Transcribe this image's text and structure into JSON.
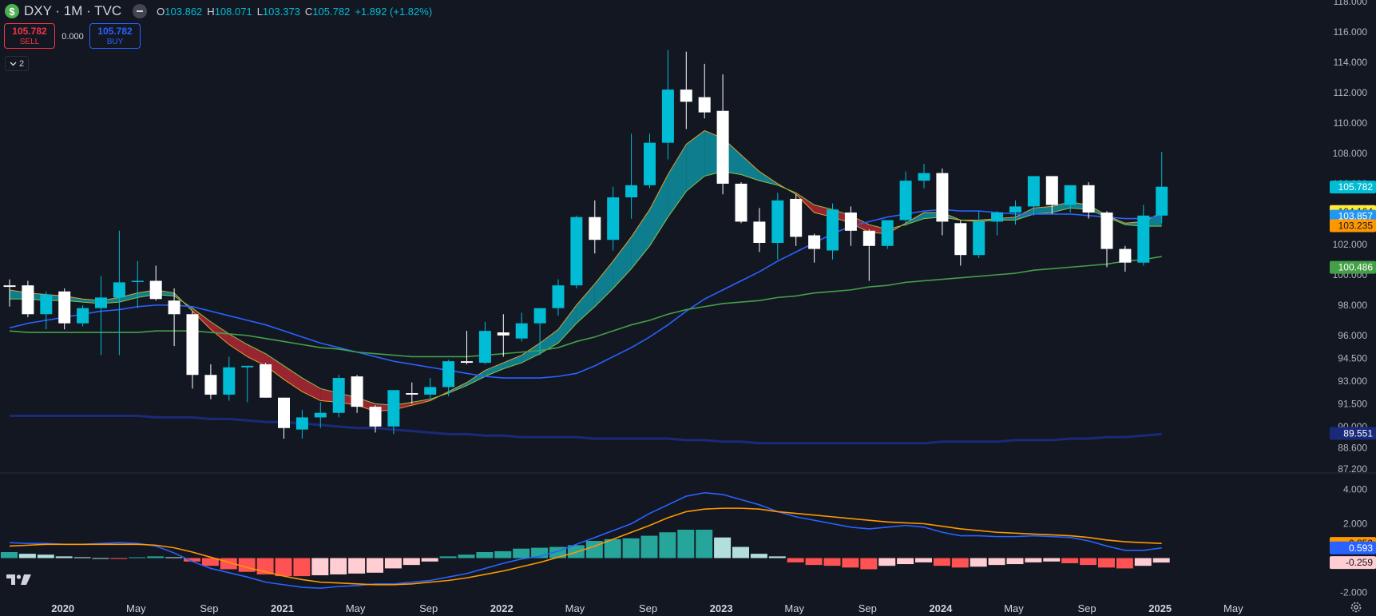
{
  "header": {
    "symbol_icon": "$",
    "title": "DXY · 1M · TVC",
    "ohlc": {
      "o_label": "O",
      "o": "103.862",
      "h_label": "H",
      "h": "108.071",
      "l_label": "L",
      "l": "103.373",
      "c_label": "C",
      "c": "105.782",
      "change": "+1.892 (+1.82%)"
    }
  },
  "trade": {
    "sell_price": "105.782",
    "sell_label": "SELL",
    "spread": "0.000",
    "buy_price": "105.782",
    "buy_label": "BUY"
  },
  "indicators_toggle": {
    "count": "2"
  },
  "icons": {
    "logo": "tradingview-logo-icon",
    "settings": "gear-icon",
    "collapse": "collapse-icon",
    "chevron": "chevron-down-icon"
  },
  "colors": {
    "background": "#131722",
    "up_candle": "#00bcd4",
    "down_candle": "#ffffff",
    "ribbon_bull": "#0e8fa0",
    "ribbon_bear": "#b22833",
    "ma_blue": "#2962ff",
    "ma_green": "#43a047",
    "ma_navy": "#1a2a7a",
    "macd_line": "#2962ff",
    "signal_line": "#ff9800",
    "hist_pos_strong": "#26a69a",
    "hist_pos_weak": "#b2dfdb",
    "hist_neg_strong": "#ff5252",
    "hist_neg_weak": "#ffcdd2"
  },
  "chart_data": [
    {
      "type": "candlestick",
      "symbol": "DXY",
      "interval": "1M",
      "y_scale_ticks": [
        "118.000",
        "116.000",
        "114.000",
        "112.000",
        "110.000",
        "108.000",
        "106.000",
        "104.000",
        "102.000",
        "100.000",
        "98.000",
        "96.000",
        "94.500",
        "93.000",
        "91.500",
        "90.000",
        "88.600",
        "87.200"
      ],
      "ylim": [
        87.2,
        118.0
      ],
      "x_tick_labels": [
        "Sep",
        "2020",
        "May",
        "Sep",
        "2021",
        "May",
        "Sep",
        "2022",
        "May",
        "Sep",
        "2023",
        "May",
        "Sep",
        "2024",
        "May",
        "Sep",
        "2025",
        "May"
      ],
      "candles": [
        {
          "o": 99.3,
          "h": 99.7,
          "l": 97.9,
          "c": 99.2
        },
        {
          "o": 99.3,
          "h": 99.6,
          "l": 97.2,
          "c": 97.4
        },
        {
          "o": 97.4,
          "h": 98.9,
          "l": 96.4,
          "c": 98.7
        },
        {
          "o": 98.9,
          "h": 99.1,
          "l": 96.4,
          "c": 96.8
        },
        {
          "o": 96.8,
          "h": 98.0,
          "l": 96.6,
          "c": 97.8
        },
        {
          "o": 97.8,
          "h": 99.9,
          "l": 94.7,
          "c": 98.5
        },
        {
          "o": 98.5,
          "h": 102.9,
          "l": 94.7,
          "c": 99.5
        },
        {
          "o": 99.6,
          "h": 100.9,
          "l": 97.8,
          "c": 99.6
        },
        {
          "o": 99.6,
          "h": 100.6,
          "l": 98.3,
          "c": 98.4
        },
        {
          "o": 98.3,
          "h": 99.1,
          "l": 95.3,
          "c": 97.4
        },
        {
          "o": 97.4,
          "h": 97.6,
          "l": 92.5,
          "c": 93.4
        },
        {
          "o": 93.4,
          "h": 94.1,
          "l": 91.8,
          "c": 92.1
        },
        {
          "o": 92.1,
          "h": 94.6,
          "l": 91.7,
          "c": 93.9
        },
        {
          "o": 93.9,
          "h": 94.0,
          "l": 91.6,
          "c": 94.0
        },
        {
          "o": 94.1,
          "h": 94.2,
          "l": 91.9,
          "c": 91.9
        },
        {
          "o": 91.9,
          "h": 91.9,
          "l": 89.2,
          "c": 89.9
        },
        {
          "o": 89.8,
          "h": 91.1,
          "l": 89.2,
          "c": 90.6
        },
        {
          "o": 90.6,
          "h": 91.6,
          "l": 89.9,
          "c": 90.9
        },
        {
          "o": 90.9,
          "h": 93.4,
          "l": 90.6,
          "c": 93.2
        },
        {
          "o": 93.3,
          "h": 93.4,
          "l": 90.9,
          "c": 91.3
        },
        {
          "o": 91.3,
          "h": 91.4,
          "l": 89.6,
          "c": 90.0
        },
        {
          "o": 90.0,
          "h": 92.4,
          "l": 89.5,
          "c": 92.4
        },
        {
          "o": 92.2,
          "h": 92.9,
          "l": 91.5,
          "c": 92.1
        },
        {
          "o": 92.1,
          "h": 93.2,
          "l": 91.8,
          "c": 92.6
        },
        {
          "o": 92.6,
          "h": 94.4,
          "l": 92.0,
          "c": 94.3
        },
        {
          "o": 94.3,
          "h": 96.3,
          "l": 94.1,
          "c": 94.2
        },
        {
          "o": 94.2,
          "h": 96.9,
          "l": 94.1,
          "c": 96.3
        },
        {
          "o": 96.2,
          "h": 97.4,
          "l": 94.6,
          "c": 96.0
        },
        {
          "o": 95.8,
          "h": 97.5,
          "l": 95.6,
          "c": 96.8
        },
        {
          "o": 96.8,
          "h": 97.7,
          "l": 94.7,
          "c": 97.8
        },
        {
          "o": 97.8,
          "h": 99.7,
          "l": 97.3,
          "c": 99.3
        },
        {
          "o": 99.3,
          "h": 103.9,
          "l": 99.1,
          "c": 103.8
        },
        {
          "o": 103.8,
          "h": 104.9,
          "l": 101.4,
          "c": 102.3
        },
        {
          "o": 102.3,
          "h": 105.8,
          "l": 101.6,
          "c": 105.1
        },
        {
          "o": 105.1,
          "h": 109.3,
          "l": 103.7,
          "c": 105.9
        },
        {
          "o": 105.9,
          "h": 109.3,
          "l": 105.7,
          "c": 108.7
        },
        {
          "o": 108.7,
          "h": 114.8,
          "l": 107.6,
          "c": 112.2
        },
        {
          "o": 112.2,
          "h": 114.7,
          "l": 109.6,
          "c": 111.4
        },
        {
          "o": 111.7,
          "h": 113.9,
          "l": 110.3,
          "c": 110.7
        },
        {
          "o": 110.8,
          "h": 113.2,
          "l": 105.3,
          "c": 106.0
        },
        {
          "o": 106.0,
          "h": 106.1,
          "l": 103.4,
          "c": 103.5
        },
        {
          "o": 103.5,
          "h": 104.4,
          "l": 101.5,
          "c": 102.1
        },
        {
          "o": 102.1,
          "h": 105.4,
          "l": 101.0,
          "c": 104.9
        },
        {
          "o": 105.0,
          "h": 105.3,
          "l": 101.9,
          "c": 102.5
        },
        {
          "o": 102.6,
          "h": 102.7,
          "l": 100.8,
          "c": 101.7
        },
        {
          "o": 101.6,
          "h": 104.7,
          "l": 101.0,
          "c": 104.3
        },
        {
          "o": 104.1,
          "h": 104.5,
          "l": 101.9,
          "c": 102.9
        },
        {
          "o": 102.9,
          "h": 103.0,
          "l": 99.6,
          "c": 101.9
        },
        {
          "o": 101.9,
          "h": 103.6,
          "l": 101.7,
          "c": 103.6
        },
        {
          "o": 103.6,
          "h": 106.8,
          "l": 103.2,
          "c": 106.2
        },
        {
          "o": 106.2,
          "h": 107.3,
          "l": 105.7,
          "c": 106.7
        },
        {
          "o": 106.7,
          "h": 107.0,
          "l": 102.6,
          "c": 103.5
        },
        {
          "o": 103.4,
          "h": 103.6,
          "l": 100.6,
          "c": 101.3
        },
        {
          "o": 101.3,
          "h": 104.2,
          "l": 101.1,
          "c": 103.5
        },
        {
          "o": 103.5,
          "h": 104.2,
          "l": 102.6,
          "c": 104.1
        },
        {
          "o": 104.1,
          "h": 104.9,
          "l": 103.3,
          "c": 104.5
        },
        {
          "o": 104.5,
          "h": 106.5,
          "l": 103.9,
          "c": 106.5
        },
        {
          "o": 106.5,
          "h": 106.5,
          "l": 104.0,
          "c": 104.6
        },
        {
          "o": 104.6,
          "h": 105.7,
          "l": 104.1,
          "c": 105.9
        },
        {
          "o": 105.9,
          "h": 106.1,
          "l": 103.7,
          "c": 104.1
        },
        {
          "o": 104.1,
          "h": 104.2,
          "l": 100.5,
          "c": 101.7
        },
        {
          "o": 101.7,
          "h": 101.9,
          "l": 100.2,
          "c": 100.8
        },
        {
          "o": 100.8,
          "h": 104.6,
          "l": 100.6,
          "c": 103.9
        },
        {
          "o": 103.9,
          "h": 108.1,
          "l": 103.4,
          "c": 105.8
        }
      ],
      "overlays": [
        {
          "name": "ema_fast",
          "color": "#e0a030",
          "values": [
            99.0,
            98.8,
            98.7,
            98.6,
            98.4,
            98.3,
            98.5,
            98.8,
            99.0,
            98.8,
            97.6,
            96.4,
            95.4,
            94.6,
            94.0,
            93.1,
            92.3,
            91.7,
            91.6,
            91.4,
            91.0,
            91.1,
            91.4,
            91.7,
            92.3,
            92.9,
            93.7,
            94.2,
            94.7,
            95.5,
            96.4,
            98.0,
            99.4,
            100.9,
            102.5,
            104.3,
            106.6,
            108.6,
            109.5,
            109.0,
            107.9,
            106.8,
            106.0,
            105.3,
            104.1,
            103.8,
            103.4,
            102.8,
            102.7,
            103.4,
            104.1,
            104.1,
            103.6,
            103.6,
            103.7,
            103.8,
            104.4,
            104.5,
            104.8,
            104.6,
            103.9,
            103.4,
            103.5,
            104.1
          ]
        },
        {
          "name": "ema_slow",
          "color": "#8bc34a",
          "values": [
            98.4,
            98.4,
            98.3,
            98.3,
            98.2,
            98.1,
            98.2,
            98.5,
            98.7,
            98.6,
            97.8,
            96.9,
            96.1,
            95.4,
            94.8,
            94.0,
            93.2,
            92.5,
            92.2,
            91.9,
            91.5,
            91.4,
            91.6,
            91.8,
            92.2,
            92.7,
            93.3,
            93.8,
            94.2,
            94.8,
            95.5,
            96.8,
            97.9,
            99.1,
            100.4,
            101.9,
            103.8,
            105.5,
            106.5,
            106.8,
            106.6,
            106.2,
            105.9,
            105.4,
            104.6,
            104.3,
            103.9,
            103.3,
            103.0,
            103.3,
            103.7,
            103.8,
            103.6,
            103.5,
            103.6,
            103.6,
            104.0,
            104.1,
            104.4,
            104.3,
            103.8,
            103.3,
            103.2,
            103.2
          ]
        },
        {
          "name": "ma_blue",
          "color": "#2962ff",
          "values": [
            96.5,
            96.8,
            97.0,
            97.2,
            97.4,
            97.6,
            97.7,
            97.9,
            98.0,
            98.0,
            97.9,
            97.6,
            97.3,
            97.0,
            96.7,
            96.3,
            95.9,
            95.5,
            95.2,
            94.9,
            94.6,
            94.3,
            94.1,
            93.9,
            93.7,
            93.5,
            93.3,
            93.2,
            93.2,
            93.2,
            93.3,
            93.5,
            94.0,
            94.6,
            95.2,
            95.9,
            96.7,
            97.6,
            98.4,
            99.0,
            99.6,
            100.2,
            100.9,
            101.5,
            102.1,
            102.7,
            103.2,
            103.5,
            103.8,
            104.0,
            104.2,
            104.3,
            104.2,
            104.2,
            104.1,
            104.0,
            104.0,
            104.0,
            104.0,
            103.9,
            103.8,
            103.7,
            103.7,
            103.9
          ]
        },
        {
          "name": "ma_green",
          "color": "#43a047",
          "values": [
            96.3,
            96.2,
            96.2,
            96.2,
            96.2,
            96.2,
            96.2,
            96.2,
            96.3,
            96.3,
            96.3,
            96.2,
            96.1,
            96.0,
            95.8,
            95.6,
            95.4,
            95.2,
            95.1,
            94.9,
            94.8,
            94.7,
            94.6,
            94.6,
            94.6,
            94.6,
            94.7,
            94.8,
            94.9,
            95.0,
            95.2,
            95.6,
            95.9,
            96.3,
            96.7,
            97.0,
            97.4,
            97.7,
            97.9,
            98.1,
            98.2,
            98.3,
            98.5,
            98.6,
            98.8,
            98.9,
            99.0,
            99.2,
            99.3,
            99.5,
            99.6,
            99.7,
            99.8,
            99.9,
            100.0,
            100.1,
            100.3,
            100.4,
            100.5,
            100.6,
            100.7,
            100.9,
            101.0,
            101.2
          ]
        },
        {
          "name": "ma_navy",
          "color": "#1a2a7a",
          "values": [
            90.7,
            90.7,
            90.7,
            90.7,
            90.7,
            90.7,
            90.7,
            90.7,
            90.6,
            90.6,
            90.6,
            90.5,
            90.5,
            90.4,
            90.3,
            90.3,
            90.2,
            90.1,
            90.0,
            89.9,
            89.9,
            89.8,
            89.7,
            89.6,
            89.5,
            89.5,
            89.4,
            89.4,
            89.3,
            89.3,
            89.3,
            89.3,
            89.2,
            89.2,
            89.2,
            89.2,
            89.2,
            89.1,
            89.1,
            89.0,
            89.0,
            88.9,
            88.9,
            88.9,
            88.9,
            88.9,
            88.9,
            88.9,
            88.9,
            88.9,
            88.9,
            89.0,
            89.0,
            89.0,
            89.0,
            89.1,
            89.1,
            89.1,
            89.2,
            89.2,
            89.3,
            89.3,
            89.4,
            89.5
          ]
        }
      ],
      "price_labels": [
        {
          "value": "105.782",
          "bg": "#00bcd4",
          "fg": "#ffffff",
          "y": 105.782
        },
        {
          "value": "104.164",
          "bg": "#ffeb3b",
          "fg": "#131722",
          "y": 104.164
        },
        {
          "value": "103.857",
          "bg": "#2196f3",
          "fg": "#ffffff",
          "y": 103.857
        },
        {
          "value": "103.235",
          "bg": "#ff9800",
          "fg": "#131722",
          "y": 103.235
        },
        {
          "value": "100.486",
          "bg": "#43a047",
          "fg": "#ffffff",
          "y": 100.486
        },
        {
          "value": "89.551",
          "bg": "#1a2a7a",
          "fg": "#ffffff",
          "y": 89.551
        }
      ]
    },
    {
      "type": "macd",
      "y_scale_ticks": [
        "4.000",
        "2.000",
        "-2.000"
      ],
      "ylim": [
        -2.3,
        4.3
      ],
      "histogram": [
        0.35,
        0.25,
        0.2,
        0.1,
        0.05,
        0.0,
        -0.05,
        0.05,
        0.1,
        0.05,
        -0.2,
        -0.45,
        -0.65,
        -0.8,
        -0.95,
        -1.05,
        -1.05,
        -1.0,
        -0.95,
        -0.9,
        -0.85,
        -0.6,
        -0.4,
        -0.2,
        0.1,
        0.2,
        0.35,
        0.4,
        0.55,
        0.6,
        0.65,
        0.75,
        1.0,
        1.1,
        1.15,
        1.3,
        1.5,
        1.65,
        1.65,
        1.2,
        0.65,
        0.25,
        0.1,
        -0.25,
        -0.4,
        -0.45,
        -0.55,
        -0.65,
        -0.45,
        -0.35,
        -0.25,
        -0.45,
        -0.55,
        -0.5,
        -0.4,
        -0.35,
        -0.25,
        -0.2,
        -0.3,
        -0.4,
        -0.55,
        -0.6,
        -0.45,
        -0.26
      ],
      "macd_line": [
        0.9,
        0.85,
        0.85,
        0.8,
        0.8,
        0.85,
        0.9,
        0.85,
        0.7,
        0.3,
        -0.2,
        -0.6,
        -0.85,
        -1.1,
        -1.4,
        -1.55,
        -1.7,
        -1.75,
        -1.65,
        -1.6,
        -1.5,
        -1.5,
        -1.4,
        -1.3,
        -1.1,
        -0.9,
        -0.6,
        -0.3,
        -0.05,
        0.1,
        0.4,
        0.8,
        1.2,
        1.6,
        2.0,
        2.6,
        3.1,
        3.6,
        3.8,
        3.7,
        3.4,
        3.1,
        2.7,
        2.4,
        2.2,
        2.0,
        1.8,
        1.7,
        1.8,
        1.9,
        1.8,
        1.5,
        1.3,
        1.3,
        1.25,
        1.25,
        1.3,
        1.25,
        1.2,
        1.0,
        0.7,
        0.45,
        0.45,
        0.59
      ],
      "signal_line": [
        0.7,
        0.75,
        0.8,
        0.8,
        0.8,
        0.8,
        0.8,
        0.8,
        0.75,
        0.6,
        0.35,
        0.05,
        -0.25,
        -0.55,
        -0.8,
        -1.05,
        -1.25,
        -1.4,
        -1.45,
        -1.5,
        -1.55,
        -1.55,
        -1.5,
        -1.4,
        -1.3,
        -1.15,
        -0.95,
        -0.75,
        -0.5,
        -0.25,
        0.05,
        0.35,
        0.7,
        1.1,
        1.5,
        1.9,
        2.35,
        2.7,
        2.85,
        2.9,
        2.9,
        2.85,
        2.7,
        2.6,
        2.5,
        2.4,
        2.3,
        2.2,
        2.1,
        2.05,
        2.0,
        1.85,
        1.7,
        1.6,
        1.5,
        1.45,
        1.4,
        1.35,
        1.3,
        1.2,
        1.05,
        0.95,
        0.9,
        0.85
      ],
      "value_labels": [
        {
          "value": "0.852",
          "bg": "#ff9800",
          "fg": "#131722",
          "y": 0.852
        },
        {
          "value": "0.593",
          "bg": "#2962ff",
          "fg": "#ffffff",
          "y": 0.593
        },
        {
          "value": "-0.259",
          "bg": "#ffcdd2",
          "fg": "#131722",
          "y": -0.259
        }
      ]
    }
  ]
}
